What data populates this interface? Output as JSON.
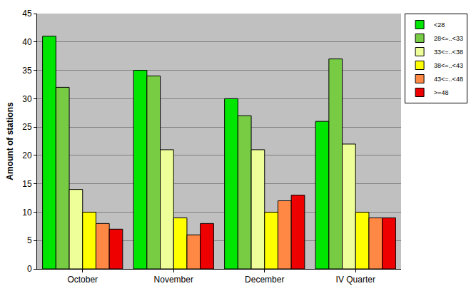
{
  "chart_data": {
    "type": "bar",
    "y_label": "Amount of stations",
    "categories": [
      "October",
      "November",
      "December",
      "IV Quarter"
    ],
    "series": [
      {
        "name": "<28",
        "color": "#00e600",
        "values": [
          41,
          35,
          30,
          26
        ]
      },
      {
        "name": "28<=..<33",
        "color": "#77cc44",
        "values": [
          32,
          34,
          27,
          37
        ]
      },
      {
        "name": "33<=..<38",
        "color": "#eeff99",
        "values": [
          14,
          21,
          21,
          22
        ]
      },
      {
        "name": "38<=..<43",
        "color": "#ffff00",
        "values": [
          10,
          9,
          10,
          10
        ]
      },
      {
        "name": "43<=..<48",
        "color": "#ff8844",
        "values": [
          8,
          6,
          12,
          9
        ]
      },
      {
        "name": ">=48",
        "color": "#ee0000",
        "values": [
          7,
          8,
          13,
          9
        ]
      }
    ],
    "ylim": [
      0,
      45
    ],
    "yticks": [
      0,
      5,
      10,
      15,
      20,
      25,
      30,
      35,
      40,
      45
    ],
    "grid": true,
    "legend": "top right"
  }
}
